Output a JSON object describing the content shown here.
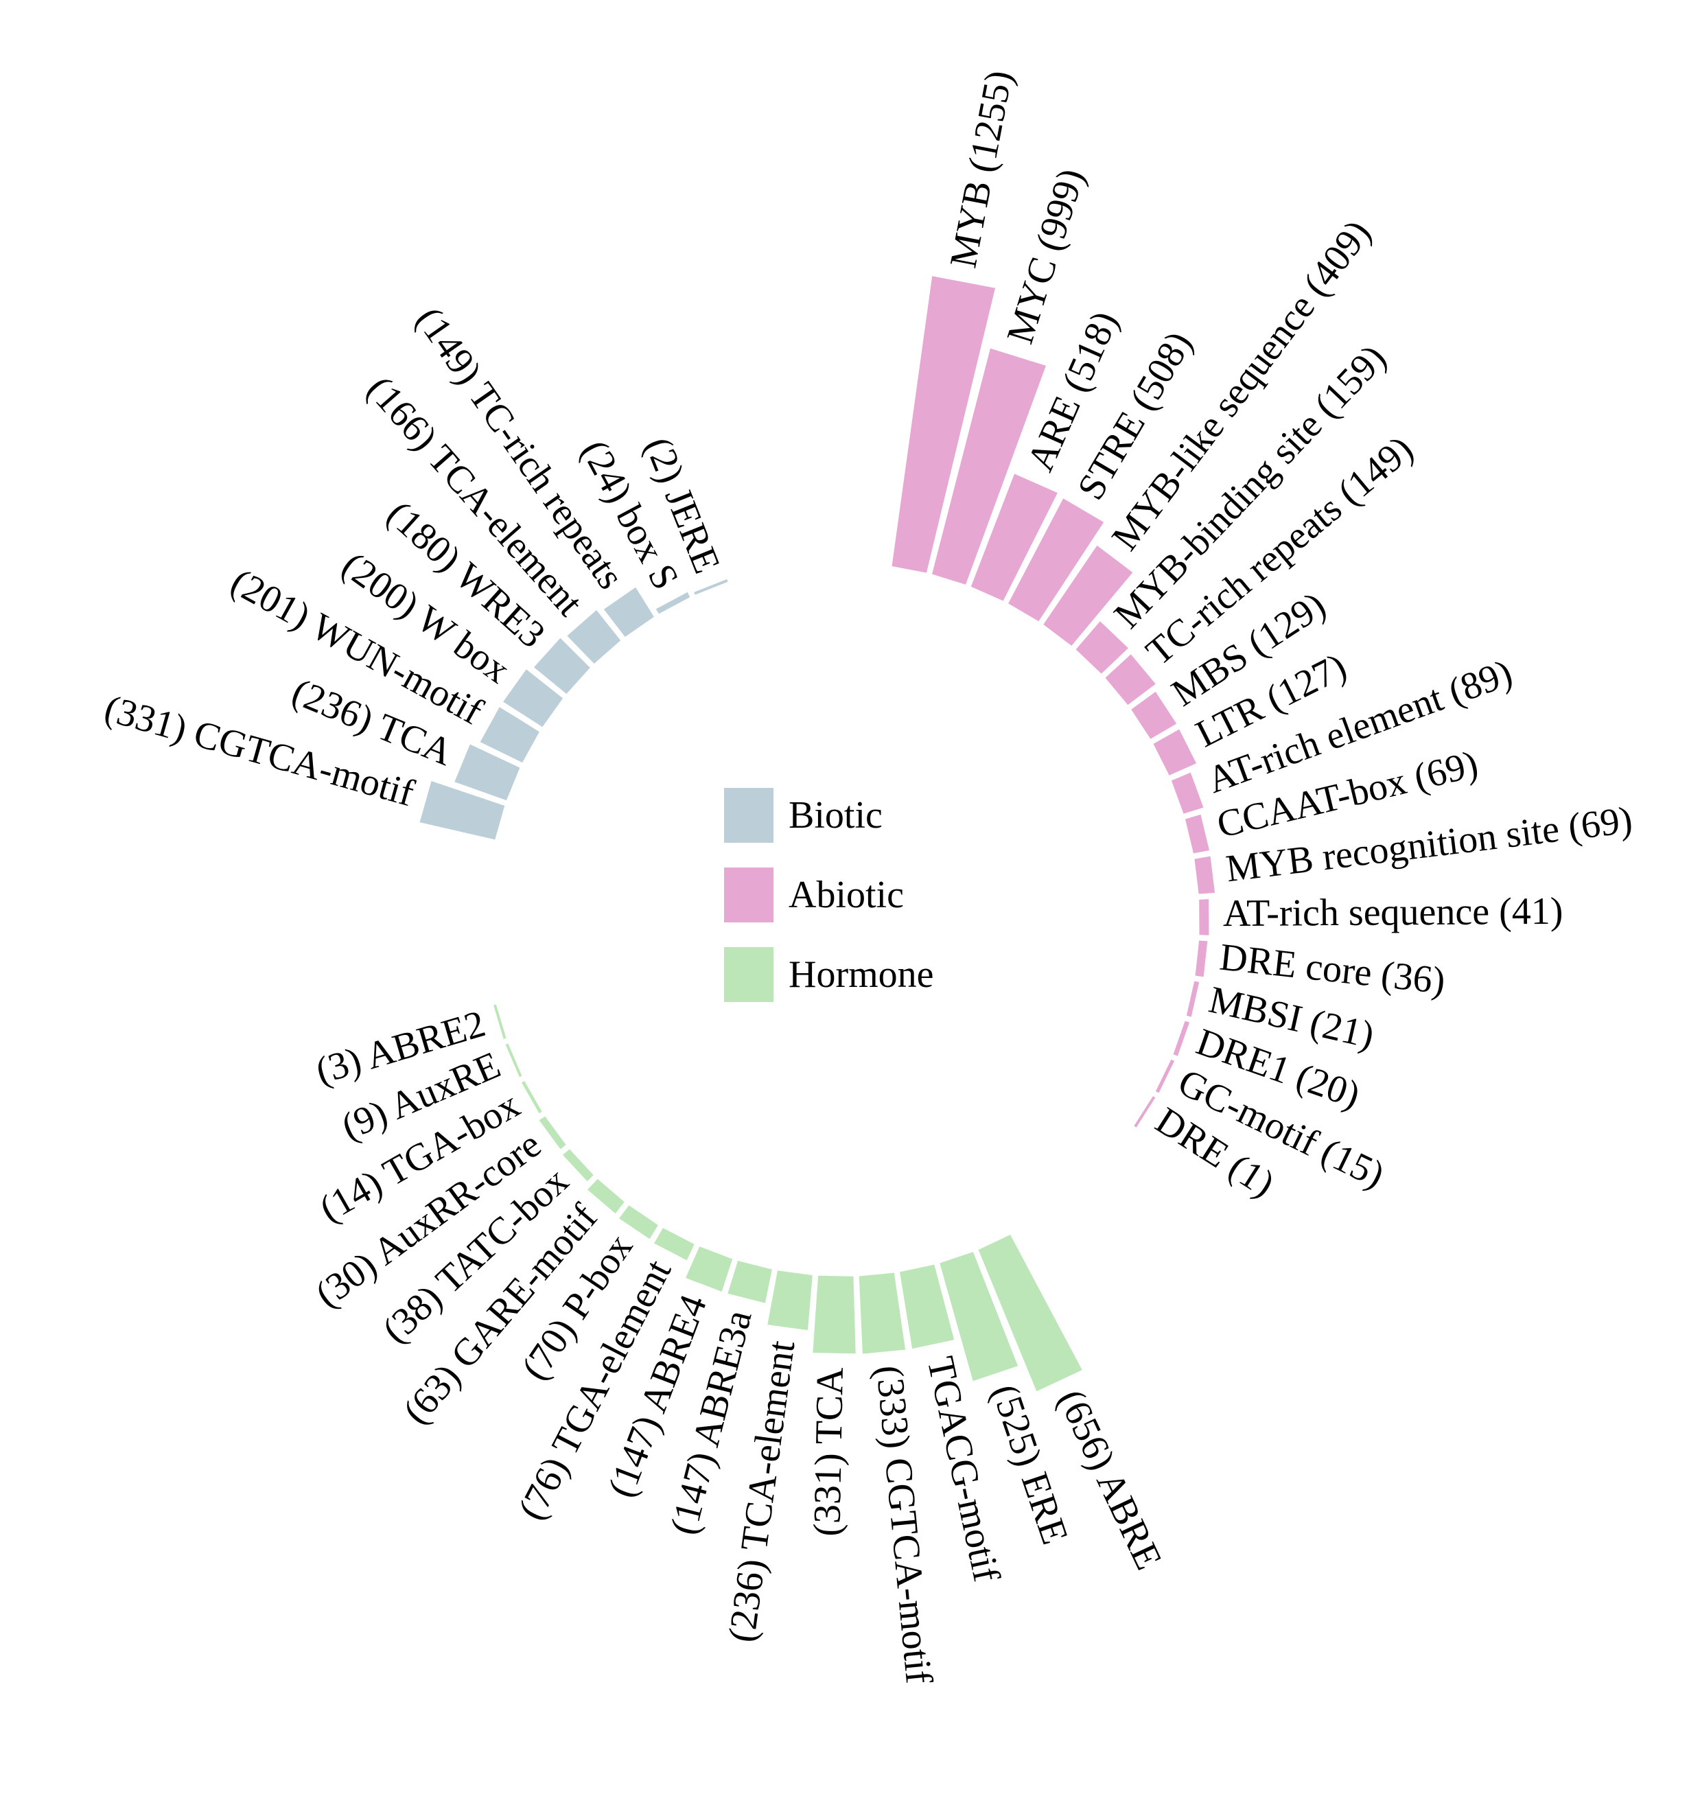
{
  "legend": [
    {
      "label": "Biotic",
      "color": "#bccfd9"
    },
    {
      "label": "Abiotic",
      "color": "#e6a7d3"
    },
    {
      "label": "Hormone",
      "color": "#bde6b8"
    }
  ],
  "chart_data": {
    "type": "radial-bar",
    "title": "",
    "groups": [
      {
        "name": "Biotic",
        "color": "#bccfd9",
        "items": [
          {
            "value": 331,
            "label": "(331) CGTCA-motif"
          },
          {
            "value": 236,
            "label": "(236) TCA"
          },
          {
            "value": 201,
            "label": "(201) WUN-motif"
          },
          {
            "value": 200,
            "label": "(200) W box"
          },
          {
            "value": 180,
            "label": "(180) WRE3"
          },
          {
            "value": 166,
            "label": "(166) TCA-element"
          },
          {
            "value": 149,
            "label": "(149) TC-rich repeats"
          },
          {
            "value": 24,
            "label": "(24) box S"
          },
          {
            "value": 2,
            "label": "(2) JERE"
          }
        ]
      },
      {
        "name": "Abiotic",
        "color": "#e6a7d3",
        "items": [
          {
            "value": 1255,
            "label": "MYB (1255)"
          },
          {
            "value": 999,
            "label": "MYC (999)"
          },
          {
            "value": 518,
            "label": "ARE (518)"
          },
          {
            "value": 508,
            "label": "STRE (508)"
          },
          {
            "value": 409,
            "label": "MYB-like sequence (409)"
          },
          {
            "value": 159,
            "label": "MYB-binding site (159)"
          },
          {
            "value": 149,
            "label": "TC-rich repeats (149)"
          },
          {
            "value": 129,
            "label": "MBS (129)"
          },
          {
            "value": 127,
            "label": "LTR (127)"
          },
          {
            "value": 89,
            "label": "AT-rich element (89)"
          },
          {
            "value": 69,
            "label": "CCAAT-box (69)"
          },
          {
            "value": 69,
            "label": "MYB recognition site (69)"
          },
          {
            "value": 41,
            "label": "AT-rich sequence (41)"
          },
          {
            "value": 36,
            "label": "DRE core (36)"
          },
          {
            "value": 21,
            "label": "MBSI (21)"
          },
          {
            "value": 20,
            "label": "DRE1 (20)"
          },
          {
            "value": 15,
            "label": "GC-motif (15)"
          },
          {
            "value": 1,
            "label": "DRE (1)"
          }
        ]
      },
      {
        "name": "Hormone",
        "color": "#bde6b8",
        "items": [
          {
            "value": 656,
            "label": "(656) ABRE"
          },
          {
            "value": 525,
            "label": "(525) ERE"
          },
          {
            "value": 333,
            "label": "TGACG-motif"
          },
          {
            "value": 333,
            "label": "(333) CGTCA-motif"
          },
          {
            "value": 331,
            "label": "(331) TCA"
          },
          {
            "value": 236,
            "label": "(236) TCA-element"
          },
          {
            "value": 147,
            "label": "(147) ABRE3a"
          },
          {
            "value": 147,
            "label": "(147) ABRE4"
          },
          {
            "value": 76,
            "label": "(76) TGA-element"
          },
          {
            "value": 70,
            "label": "(70) P-box"
          },
          {
            "value": 63,
            "label": "(63) GARE-motif"
          },
          {
            "value": 38,
            "label": "(38) TATC-box"
          },
          {
            "value": 30,
            "label": "(30) AuxRR-core"
          },
          {
            "value": 14,
            "label": "(14) TGA-box"
          },
          {
            "value": 9,
            "label": "(9) AuxRE"
          },
          {
            "value": 3,
            "label": "(3) ABRE2"
          }
        ]
      }
    ]
  }
}
